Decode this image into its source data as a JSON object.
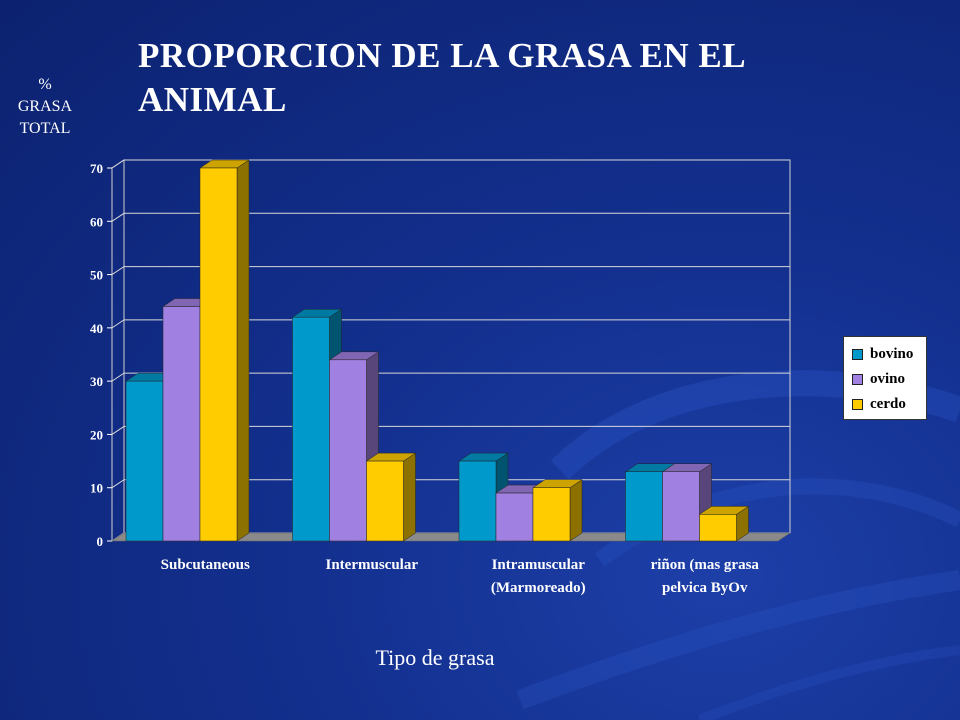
{
  "slide": {
    "title": "PROPORCION DE LA GRASA EN EL ANIMAL"
  },
  "chart_data": {
    "type": "bar",
    "style": "3d-clustered-column",
    "title": "PROPORCION DE LA GRASA EN EL ANIMAL",
    "ylabel_lines": [
      "%",
      "GRASA",
      "TOTAL"
    ],
    "xlabel": "Tipo  de grasa",
    "ylim": [
      0,
      70
    ],
    "yticks": [
      0,
      10,
      20,
      30,
      40,
      50,
      60,
      70
    ],
    "grid": true,
    "legend_position": "right",
    "categories": [
      [
        "Subcutaneous"
      ],
      [
        "Intermuscular"
      ],
      [
        "Intramuscular",
        "(Marmoreado)"
      ],
      [
        "riñon (mas grasa",
        "pelvica ByOv"
      ]
    ],
    "series": [
      {
        "name": "bovino",
        "color": "#0099cc",
        "values": [
          30,
          42,
          15,
          13
        ]
      },
      {
        "name": "ovino",
        "color": "#a080e0",
        "values": [
          44,
          34,
          9,
          13
        ]
      },
      {
        "name": "cerdo",
        "color": "#ffcc00",
        "values": [
          70,
          15,
          10,
          5
        ]
      }
    ]
  }
}
